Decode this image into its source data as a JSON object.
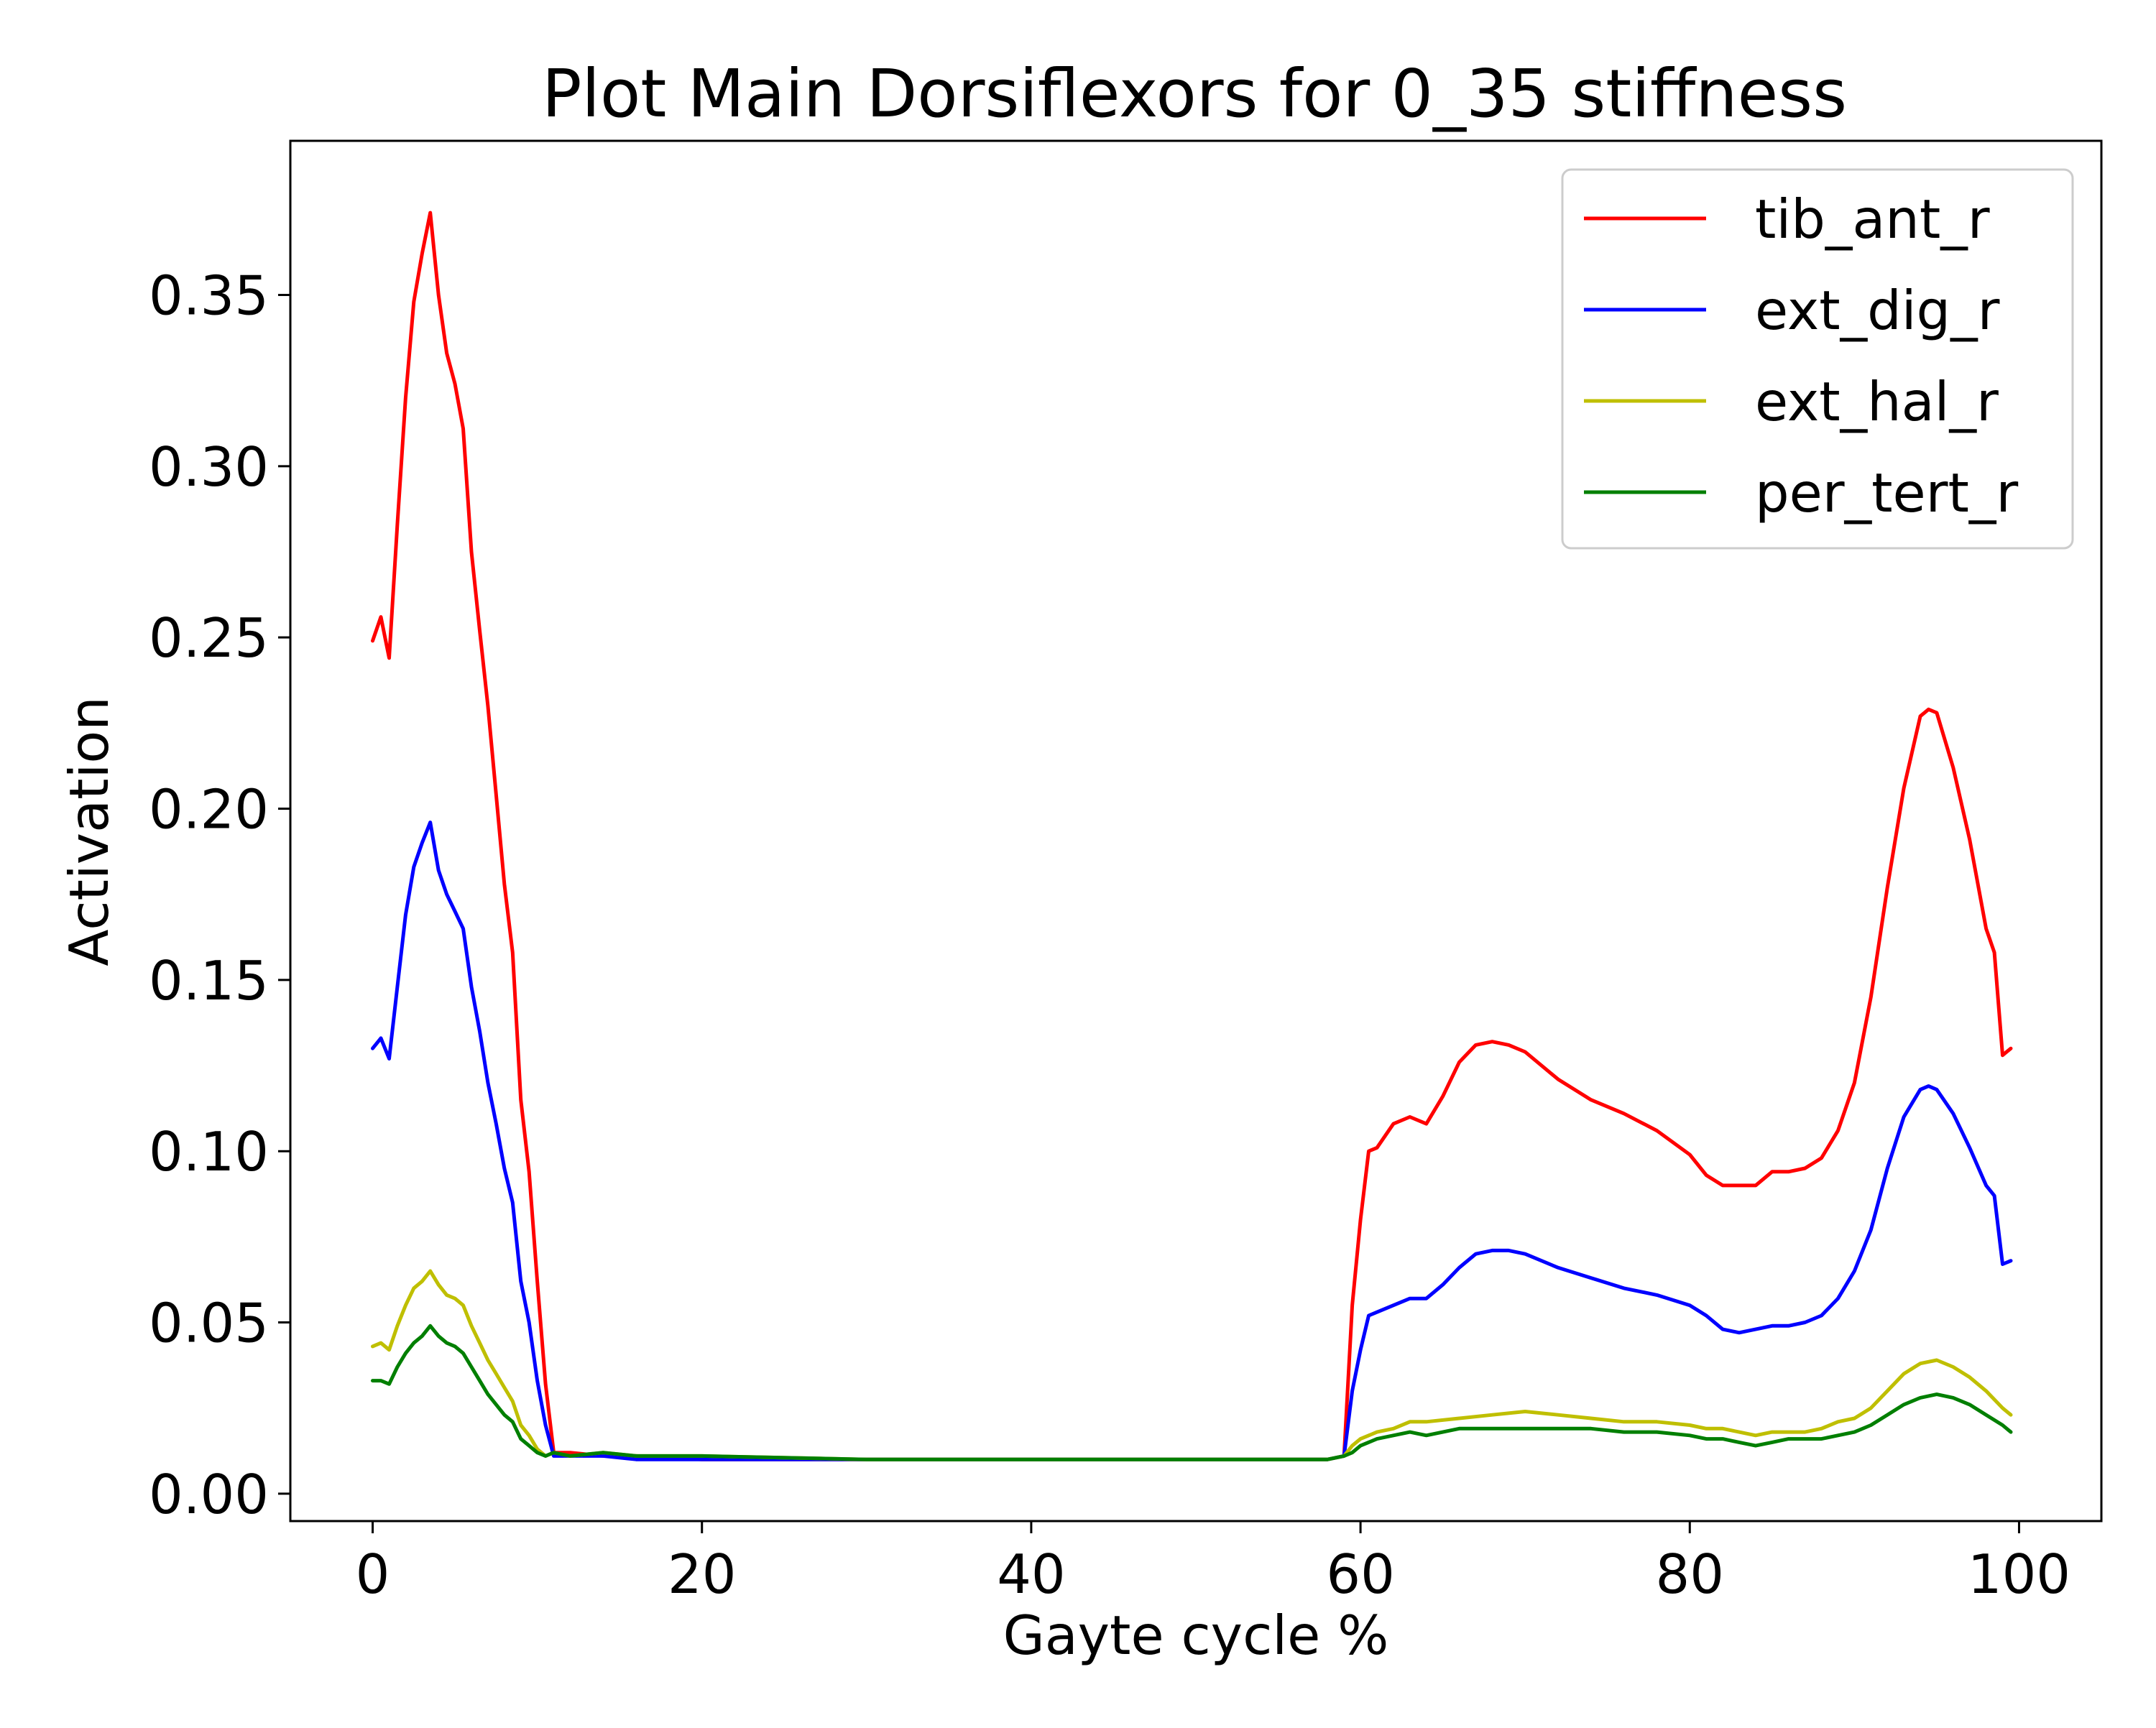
{
  "chart_data": {
    "type": "line",
    "title": "Plot Main Dorsiflexors for 0_35 stiffness",
    "xlabel": "Gayte cycle %",
    "ylabel": "Activation",
    "xlim": [
      -5,
      105
    ],
    "ylim": [
      -0.008,
      0.395
    ],
    "xticks": [
      0,
      20,
      40,
      60,
      80,
      100
    ],
    "xtick_labels": [
      "0",
      "20",
      "40",
      "60",
      "80",
      "100"
    ],
    "yticks": [
      0.0,
      0.05,
      0.1,
      0.15,
      0.2,
      0.25,
      0.3,
      0.35
    ],
    "ytick_labels": [
      "0.00",
      "0.05",
      "0.10",
      "0.15",
      "0.20",
      "0.25",
      "0.30",
      "0.35"
    ],
    "grid": false,
    "legend_position": "top-right",
    "series": [
      {
        "name": "tib_ant_r",
        "color": "#ff0000",
        "x": [
          0,
          0.5,
          1,
          1.5,
          2,
          2.5,
          3,
          3.5,
          4,
          4.5,
          5,
          5.5,
          6,
          6.5,
          7,
          7.5,
          8,
          8.5,
          9,
          9.5,
          10,
          10.5,
          11,
          12,
          14,
          16,
          20,
          30,
          40,
          50,
          58,
          59,
          59.5,
          60,
          60.5,
          61,
          62,
          63,
          64,
          65,
          66,
          67,
          68,
          69,
          70,
          72,
          74,
          76,
          78,
          80,
          81,
          82,
          83,
          84,
          85,
          86,
          87,
          88,
          89,
          90,
          91,
          92,
          93,
          94,
          94.5,
          95,
          96,
          97,
          98,
          98.5,
          99,
          99.5
        ],
        "values": [
          0.249,
          0.256,
          0.244,
          0.283,
          0.32,
          0.348,
          0.362,
          0.374,
          0.35,
          0.333,
          0.324,
          0.311,
          0.275,
          0.252,
          0.23,
          0.204,
          0.178,
          0.158,
          0.115,
          0.094,
          0.062,
          0.032,
          0.012,
          0.012,
          0.011,
          0.011,
          0.01,
          0.01,
          0.01,
          0.01,
          0.01,
          0.011,
          0.055,
          0.08,
          0.1,
          0.101,
          0.108,
          0.11,
          0.108,
          0.116,
          0.126,
          0.131,
          0.132,
          0.131,
          0.129,
          0.121,
          0.115,
          0.111,
          0.106,
          0.099,
          0.093,
          0.09,
          0.09,
          0.09,
          0.094,
          0.094,
          0.095,
          0.098,
          0.106,
          0.12,
          0.145,
          0.177,
          0.206,
          0.227,
          0.229,
          0.228,
          0.212,
          0.191,
          0.165,
          0.158,
          0.128,
          0.13
        ]
      },
      {
        "name": "ext_dig_r",
        "color": "#0000ff",
        "x": [
          0,
          0.5,
          1,
          1.5,
          2,
          2.5,
          3,
          3.5,
          4,
          4.5,
          5,
          5.5,
          6,
          6.5,
          7,
          7.5,
          8,
          8.5,
          9,
          9.5,
          10,
          10.5,
          11,
          12,
          14,
          16,
          20,
          30,
          40,
          50,
          58,
          59,
          59.5,
          60,
          60.5,
          61,
          62,
          63,
          64,
          65,
          66,
          67,
          68,
          69,
          70,
          72,
          74,
          76,
          78,
          80,
          81,
          82,
          83,
          84,
          85,
          86,
          87,
          88,
          89,
          90,
          91,
          92,
          93,
          94,
          94.5,
          95,
          96,
          97,
          98,
          98.5,
          99,
          99.5
        ],
        "values": [
          0.13,
          0.133,
          0.127,
          0.148,
          0.169,
          0.183,
          0.19,
          0.196,
          0.182,
          0.175,
          0.17,
          0.165,
          0.148,
          0.135,
          0.12,
          0.108,
          0.095,
          0.085,
          0.062,
          0.05,
          0.033,
          0.02,
          0.011,
          0.011,
          0.011,
          0.01,
          0.01,
          0.01,
          0.01,
          0.01,
          0.01,
          0.011,
          0.03,
          0.042,
          0.052,
          0.053,
          0.055,
          0.057,
          0.057,
          0.061,
          0.066,
          0.07,
          0.071,
          0.071,
          0.07,
          0.066,
          0.063,
          0.06,
          0.058,
          0.055,
          0.052,
          0.048,
          0.047,
          0.048,
          0.049,
          0.049,
          0.05,
          0.052,
          0.057,
          0.065,
          0.077,
          0.095,
          0.11,
          0.118,
          0.119,
          0.118,
          0.111,
          0.101,
          0.09,
          0.087,
          0.067,
          0.068
        ]
      },
      {
        "name": "ext_hal_r",
        "color": "#bfbf00",
        "x": [
          0,
          0.5,
          1,
          1.5,
          2,
          2.5,
          3,
          3.5,
          4,
          4.5,
          5,
          5.5,
          6,
          6.5,
          7,
          7.5,
          8,
          8.5,
          9,
          9.5,
          10,
          10.5,
          11,
          12,
          14,
          16,
          20,
          30,
          40,
          50,
          58,
          59,
          59.5,
          60,
          61,
          62,
          63,
          64,
          66,
          68,
          70,
          72,
          74,
          76,
          78,
          80,
          81,
          82,
          83,
          84,
          85,
          86,
          87,
          88,
          89,
          90,
          91,
          92,
          93,
          94,
          95,
          96,
          97,
          98,
          99,
          99.5
        ],
        "values": [
          0.043,
          0.044,
          0.042,
          0.049,
          0.055,
          0.06,
          0.062,
          0.065,
          0.061,
          0.058,
          0.057,
          0.055,
          0.049,
          0.044,
          0.039,
          0.035,
          0.031,
          0.027,
          0.02,
          0.017,
          0.013,
          0.011,
          0.012,
          0.011,
          0.012,
          0.011,
          0.011,
          0.01,
          0.01,
          0.01,
          0.01,
          0.011,
          0.014,
          0.016,
          0.018,
          0.019,
          0.021,
          0.021,
          0.022,
          0.023,
          0.024,
          0.023,
          0.022,
          0.021,
          0.021,
          0.02,
          0.019,
          0.019,
          0.018,
          0.017,
          0.018,
          0.018,
          0.018,
          0.019,
          0.021,
          0.022,
          0.025,
          0.03,
          0.035,
          0.038,
          0.039,
          0.037,
          0.034,
          0.03,
          0.025,
          0.023
        ]
      },
      {
        "name": "per_tert_r",
        "color": "#007f00",
        "x": [
          0,
          0.5,
          1,
          1.5,
          2,
          2.5,
          3,
          3.5,
          4,
          4.5,
          5,
          5.5,
          6,
          6.5,
          7,
          7.5,
          8,
          8.5,
          9,
          9.5,
          10,
          10.5,
          11,
          12,
          14,
          16,
          20,
          30,
          40,
          50,
          58,
          59,
          59.5,
          60,
          61,
          62,
          63,
          64,
          66,
          68,
          70,
          72,
          74,
          76,
          78,
          80,
          81,
          82,
          83,
          84,
          85,
          86,
          87,
          88,
          89,
          90,
          91,
          92,
          93,
          94,
          95,
          96,
          97,
          98,
          99,
          99.5
        ],
        "values": [
          0.033,
          0.033,
          0.032,
          0.037,
          0.041,
          0.044,
          0.046,
          0.049,
          0.046,
          0.044,
          0.043,
          0.041,
          0.037,
          0.033,
          0.029,
          0.026,
          0.023,
          0.021,
          0.016,
          0.014,
          0.012,
          0.011,
          0.012,
          0.011,
          0.012,
          0.011,
          0.011,
          0.01,
          0.01,
          0.01,
          0.01,
          0.011,
          0.012,
          0.014,
          0.016,
          0.017,
          0.018,
          0.017,
          0.019,
          0.019,
          0.019,
          0.019,
          0.019,
          0.018,
          0.018,
          0.017,
          0.016,
          0.016,
          0.015,
          0.014,
          0.015,
          0.016,
          0.016,
          0.016,
          0.017,
          0.018,
          0.02,
          0.023,
          0.026,
          0.028,
          0.029,
          0.028,
          0.026,
          0.023,
          0.02,
          0.018
        ]
      }
    ]
  }
}
